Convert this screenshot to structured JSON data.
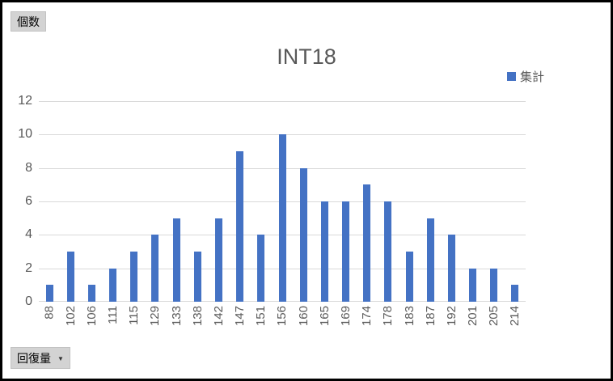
{
  "controls": {
    "value_field_button": {
      "label": "個数"
    },
    "axis_field_button": {
      "label": "回復量",
      "arrow": "▼"
    }
  },
  "chart_data": {
    "type": "bar",
    "title": "INT18",
    "categories": [
      "88",
      "102",
      "106",
      "111",
      "115",
      "129",
      "133",
      "138",
      "142",
      "147",
      "151",
      "156",
      "160",
      "165",
      "169",
      "174",
      "178",
      "183",
      "187",
      "192",
      "201",
      "205",
      "214"
    ],
    "series": [
      {
        "name": "集計",
        "color": "#4472C4",
        "values": [
          1,
          3,
          1,
          2,
          3,
          4,
          5,
          3,
          5,
          9,
          4,
          10,
          8,
          6,
          6,
          7,
          6,
          3,
          5,
          4,
          2,
          2,
          1
        ]
      }
    ],
    "xlabel": "",
    "ylabel": "",
    "ylim": [
      0,
      12
    ],
    "yticks": [
      0,
      2,
      4,
      6,
      8,
      10,
      12
    ],
    "grid": true,
    "legend_position": "top-right",
    "gridline_color": "#D9D9D9",
    "text_color": "#595959"
  }
}
